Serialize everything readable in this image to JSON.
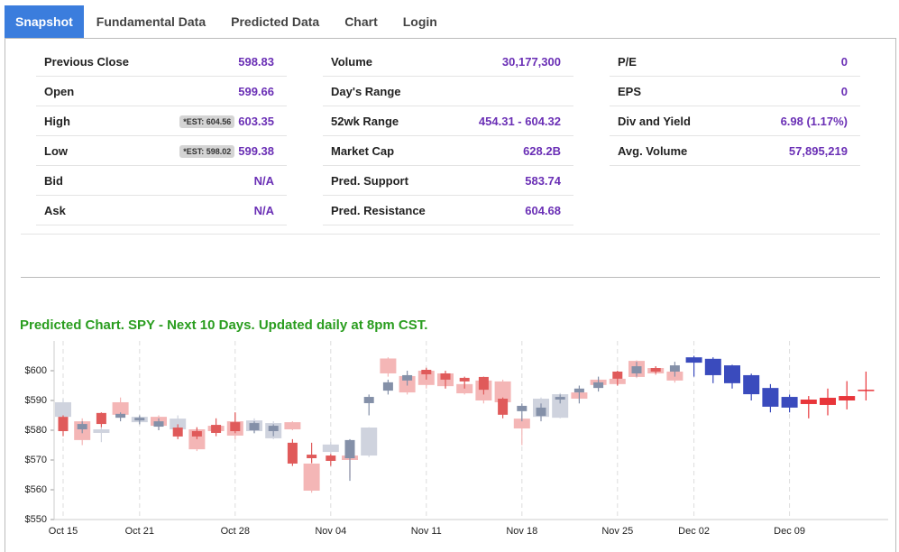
{
  "tabs": [
    {
      "label": "Snapshot",
      "active": true
    },
    {
      "label": "Fundamental Data",
      "active": false
    },
    {
      "label": "Predicted Data",
      "active": false
    },
    {
      "label": "Chart",
      "active": false
    },
    {
      "label": "Login",
      "active": false
    }
  ],
  "stats": {
    "columns": [
      {
        "rows": [
          {
            "label": "Previous Close",
            "value": "598.83"
          },
          {
            "label": "Open",
            "value": "599.66"
          },
          {
            "label": "High",
            "badge": "*EST: 604.56",
            "value": "603.35"
          },
          {
            "label": "Low",
            "badge": "*EST: 598.02",
            "value": "599.38"
          },
          {
            "label": "Bid",
            "value": "N/A"
          },
          {
            "label": "Ask",
            "value": "N/A"
          }
        ]
      },
      {
        "rows": [
          {
            "label": "Volume",
            "value": "30,177,300"
          },
          {
            "label": "Day's Range"
          },
          {
            "label": "52wk Range",
            "value": "454.31 - 604.32"
          },
          {
            "label": "Market Cap",
            "value": "628.2B"
          },
          {
            "label": "Pred. Support",
            "value": "583.74"
          },
          {
            "label": "Pred. Resistance",
            "value": "604.68"
          }
        ]
      },
      {
        "rows": [
          {
            "label": "P/E",
            "value": "0"
          },
          {
            "label": "EPS",
            "value": "0"
          },
          {
            "label": "Div and Yield",
            "value": "6.98 (1.17%)"
          },
          {
            "label": "Avg. Volume",
            "value": "57,895,219"
          }
        ]
      }
    ]
  },
  "chart_data": {
    "type": "candlestick",
    "title": "Predicted Chart. SPY - Next 10 Days. Updated daily at 8pm CST.",
    "categories": [
      "Oct 15",
      null,
      null,
      null,
      "Oct 21",
      null,
      null,
      null,
      null,
      "Oct 28",
      null,
      null,
      null,
      null,
      "Nov 04",
      null,
      null,
      null,
      null,
      "Nov 11",
      null,
      null,
      null,
      null,
      "Nov 18",
      null,
      null,
      null,
      null,
      "Nov 25",
      null,
      null,
      null,
      "Dec 02",
      null,
      null,
      null,
      null,
      "Dec 09",
      null,
      null,
      null,
      null
    ],
    "ylim": [
      550,
      610
    ],
    "yticks": [
      {
        "value": 550,
        "label": "$550"
      },
      {
        "value": 560,
        "label": "$560"
      },
      {
        "value": 570,
        "label": "$570"
      },
      {
        "value": 580,
        "label": "$580"
      },
      {
        "value": 590,
        "label": "$590"
      },
      {
        "value": 600,
        "label": "$600"
      }
    ],
    "series": [
      {
        "color_up": "#cfd3de",
        "color_down": "#f4b6b6",
        "values": [
          [
            584.5,
            590.5,
            582,
            589.4
          ],
          [
            583,
            584,
            575,
            576.7
          ],
          [
            579.1,
            581,
            576,
            580.3
          ],
          [
            589.4,
            591,
            584,
            585.2
          ],
          [
            582.7,
            585,
            582,
            584.5
          ],
          [
            584.5,
            585,
            580,
            581.5
          ],
          [
            580.3,
            585,
            578,
            583.9
          ],
          [
            580.3,
            581,
            573,
            573.6
          ],
          [
            581.5,
            582,
            579,
            579.7
          ],
          [
            583,
            586,
            577,
            578.2
          ],
          [
            579.7,
            584,
            579,
            583.3
          ],
          [
            577.3,
            583,
            577,
            582.4
          ],
          [
            582.7,
            583,
            580,
            580.3
          ],
          [
            568.8,
            570,
            559,
            559.7
          ],
          [
            572.7,
            576,
            572,
            575.2
          ],
          [
            571.5,
            573,
            564,
            570
          ],
          [
            571.5,
            581,
            571,
            580.9
          ],
          [
            604.1,
            604.5,
            598,
            599.1
          ],
          [
            598.2,
            599,
            592,
            592.7
          ],
          [
            600,
            600.5,
            594,
            595.2
          ],
          [
            599.1,
            599.5,
            594,
            594.8
          ],
          [
            595.5,
            596,
            592,
            592.4
          ],
          [
            596.7,
            597,
            589,
            590
          ],
          [
            596.4,
            597,
            589,
            589.4
          ],
          [
            583.9,
            585,
            575,
            580.6
          ],
          [
            584.5,
            591,
            584,
            590.6
          ],
          [
            584.2,
            592.5,
            584,
            592.1
          ],
          [
            592.7,
            593,
            590,
            590.6
          ],
          [
            597,
            597.5,
            595,
            595.2
          ],
          [
            597.3,
            598,
            595,
            595.5
          ],
          [
            603.3,
            603.5,
            597.5,
            597.9
          ],
          [
            600.9,
            601.5,
            598.5,
            599.1
          ],
          [
            599.7,
            600,
            596,
            596.7
          ],
          null,
          null,
          null,
          null,
          null,
          null,
          null,
          null,
          null,
          null
        ]
      },
      {
        "color_up": "#8490a8",
        "color_down": "#e05a5a",
        "values": [
          [
            584.5,
            585,
            578,
            579.7
          ],
          [
            580.3,
            583,
            579,
            582.1
          ],
          [
            585.8,
            586,
            581,
            582.1
          ],
          [
            584.2,
            586,
            583,
            585.5
          ],
          [
            583.3,
            585,
            582,
            584.2
          ],
          [
            581.2,
            584,
            580,
            583
          ],
          [
            580.9,
            582,
            577,
            577.9
          ],
          [
            579.7,
            581,
            577,
            577.9
          ],
          [
            581.8,
            584,
            578,
            579.1
          ],
          [
            582.7,
            586,
            579,
            579.7
          ],
          [
            580,
            583,
            579,
            582.4
          ],
          [
            579.7,
            582,
            578,
            581.5
          ],
          [
            575.8,
            577,
            568,
            568.8
          ],
          [
            571.8,
            575.8,
            569,
            570.6
          ],
          [
            571.5,
            572,
            568,
            569.7
          ],
          [
            570.6,
            577,
            563,
            576.7
          ],
          [
            589.1,
            592,
            585,
            591.2
          ],
          [
            593.3,
            597,
            592,
            596.1
          ],
          [
            596.7,
            600,
            595,
            598.5
          ],
          [
            600.3,
            601,
            597,
            598.8
          ],
          [
            599.1,
            600,
            594,
            597
          ],
          [
            597.6,
            598,
            594,
            596.4
          ],
          [
            597.9,
            598,
            592,
            593.6
          ],
          [
            590.6,
            591,
            584,
            585.2
          ],
          [
            586.4,
            589,
            583,
            588.2
          ],
          [
            584.8,
            589,
            583,
            587.6
          ],
          [
            590.3,
            592,
            589,
            591.2
          ],
          [
            592.7,
            595,
            589,
            594
          ],
          [
            594.2,
            598,
            593,
            596.1
          ],
          [
            599.7,
            600,
            595,
            597.3
          ],
          [
            599.1,
            603,
            598,
            601.5
          ],
          [
            600.9,
            601.5,
            599,
            599.7
          ],
          [
            599.7,
            603,
            598,
            601.8
          ],
          null,
          null,
          null,
          null,
          null,
          null,
          null,
          null,
          null,
          null
        ]
      },
      {
        "color_up": "#3a4bbd",
        "color_down": "#e8353a",
        "values": [
          null,
          null,
          null,
          null,
          null,
          null,
          null,
          null,
          null,
          null,
          null,
          null,
          null,
          null,
          null,
          null,
          null,
          null,
          null,
          null,
          null,
          null,
          null,
          null,
          null,
          null,
          null,
          null,
          null,
          null,
          null,
          null,
          null,
          [
            602.7,
            605,
            598,
            604.5
          ],
          [
            598.5,
            604.5,
            595.8,
            604
          ],
          [
            595.8,
            602,
            594,
            601.8
          ],
          [
            592.1,
            599,
            590,
            598.5
          ],
          [
            587.9,
            595.5,
            586,
            594.2
          ],
          [
            587.6,
            592,
            586,
            591.2
          ],
          [
            590.3,
            591.5,
            584,
            588.8
          ],
          [
            590.9,
            594,
            585,
            588.5
          ],
          [
            591.5,
            596.5,
            587,
            590
          ],
          [
            593.6,
            599.7,
            590,
            593.3
          ]
        ]
      }
    ]
  }
}
